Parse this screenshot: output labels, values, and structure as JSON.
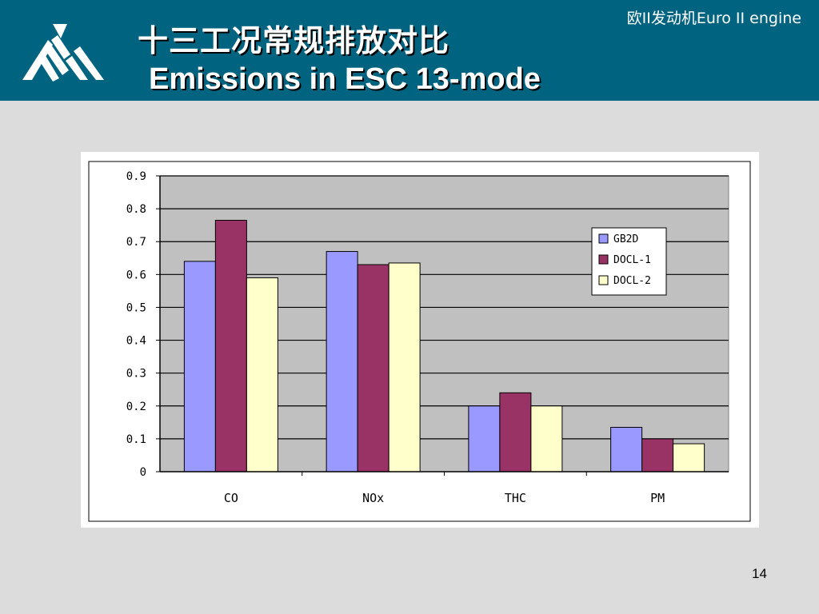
{
  "slide": {
    "title_cn": "十三工况常规排放对比",
    "title_en": "Emissions in ESC 13-mode",
    "corner_tag": "欧II发动机Euro II  engine",
    "page_number": "14"
  },
  "colors": {
    "header_bg": "#006380",
    "plot_bg": "#c0c0c0",
    "series": [
      "#9999ff",
      "#993366",
      "#ffffcc"
    ]
  },
  "chart_data": {
    "type": "bar",
    "categories": [
      "CO",
      "NOx",
      "THC",
      "PM"
    ],
    "series": [
      {
        "name": "GB2D",
        "values": [
          0.64,
          0.67,
          0.2,
          0.135
        ]
      },
      {
        "name": "DOCL-1",
        "values": [
          0.765,
          0.63,
          0.24,
          0.1
        ]
      },
      {
        "name": "DOCL-2",
        "values": [
          0.59,
          0.635,
          0.2,
          0.085
        ]
      }
    ],
    "yticks": [
      "0",
      "0.1",
      "0.2",
      "0.3",
      "0.4",
      "0.5",
      "0.6",
      "0.7",
      "0.8",
      "0.9"
    ],
    "ylim": [
      0,
      0.9
    ],
    "grid": true,
    "legend": "right"
  }
}
